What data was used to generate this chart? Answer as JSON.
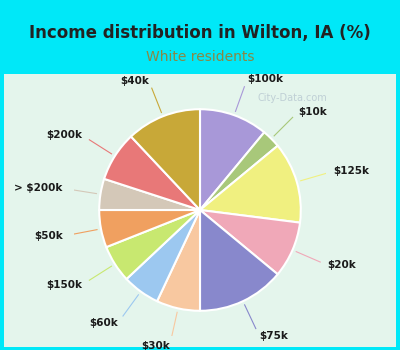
{
  "title": "Income distribution in Wilton, IA (%)",
  "subtitle": "White residents",
  "watermark": "City-Data.com",
  "labels": [
    "$100k",
    "$10k",
    "$125k",
    "$20k",
    "$75k",
    "$30k",
    "$60k",
    "$150k",
    "$50k",
    "> $200k",
    "$200k",
    "$40k"
  ],
  "values": [
    11,
    3,
    13,
    9,
    14,
    7,
    6,
    6,
    6,
    5,
    8,
    12
  ],
  "colors": [
    "#a898d8",
    "#a8c87a",
    "#f0f080",
    "#f0a8b8",
    "#8888cc",
    "#f8c8a0",
    "#9cc8f0",
    "#c8e870",
    "#f0a060",
    "#d4c8b8",
    "#e87878",
    "#c8a838"
  ],
  "title_color": "#222222",
  "subtitle_color": "#888844",
  "header_bg": "#00e8f8",
  "chart_bg_top": "#d8f0e8",
  "chart_bg_bottom": "#e8f8f0",
  "title_fontsize": 12,
  "subtitle_fontsize": 10,
  "label_fontsize": 7.5,
  "startangle": 90
}
